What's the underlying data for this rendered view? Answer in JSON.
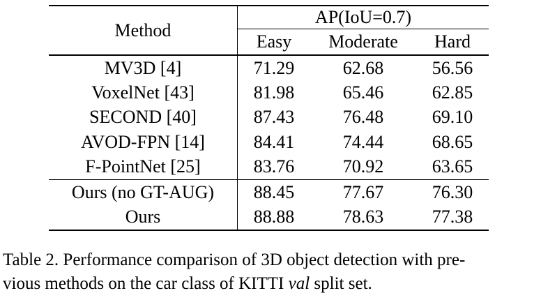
{
  "table": {
    "method_header": "Method",
    "group_header": "AP(IoU=0.7)",
    "columns": [
      "Easy",
      "Moderate",
      "Hard"
    ],
    "rows": [
      {
        "method": "MV3D [4]",
        "easy": "71.29",
        "moderate": "62.68",
        "hard": "56.56"
      },
      {
        "method": "VoxelNet [43]",
        "easy": "81.98",
        "moderate": "65.46",
        "hard": "62.85"
      },
      {
        "method": "SECOND [40]",
        "easy": "87.43",
        "moderate": "76.48",
        "hard": "69.10"
      },
      {
        "method": "AVOD-FPN [14]",
        "easy": "84.41",
        "moderate": "74.44",
        "hard": "68.65"
      },
      {
        "method": "F-PointNet [25]",
        "easy": "83.76",
        "moderate": "70.92",
        "hard": "63.65"
      },
      {
        "method": "Ours (no GT-AUG)",
        "easy": "88.45",
        "moderate": "77.67",
        "hard": "76.30"
      },
      {
        "method": "Ours",
        "easy": "88.88",
        "moderate": "78.63",
        "hard": "77.38"
      }
    ]
  },
  "caption": {
    "line1": "Table 2. Performance comparison of 3D object detection with pre-",
    "line2_before": "vious methods on the car class of KITTI ",
    "line2_italic": "val",
    "line2_after": " split set."
  }
}
